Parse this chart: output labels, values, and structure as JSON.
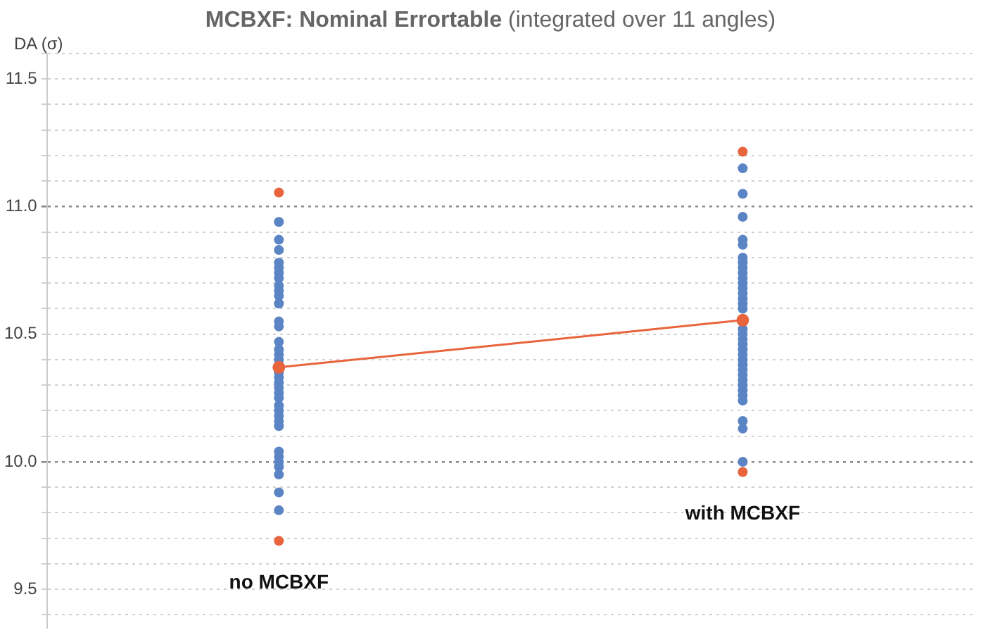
{
  "chart_data": {
    "type": "scatter",
    "title": "MCBXF: Nominal Errortable",
    "subtitle": "(integrated over 11 angles)",
    "ylabel": "DA (σ)",
    "categories": [
      "no MCBXF",
      "with MCBXF"
    ],
    "series": [
      {
        "color": "#5b84c4",
        "x": [
          "no MCBXF",
          "no MCBXF",
          "no MCBXF",
          "no MCBXF",
          "no MCBXF",
          "no MCBXF",
          "no MCBXF",
          "no MCBXF",
          "no MCBXF",
          "no MCBXF",
          "no MCBXF",
          "no MCBXF",
          "no MCBXF",
          "no MCBXF",
          "no MCBXF",
          "no MCBXF",
          "no MCBXF",
          "no MCBXF",
          "no MCBXF",
          "no MCBXF",
          "no MCBXF",
          "no MCBXF",
          "no MCBXF",
          "no MCBXF",
          "no MCBXF",
          "no MCBXF",
          "no MCBXF",
          "no MCBXF",
          "no MCBXF",
          "no MCBXF",
          "no MCBXF",
          "no MCBXF",
          "no MCBXF",
          "no MCBXF",
          "no MCBXF",
          "with MCBXF",
          "with MCBXF",
          "with MCBXF",
          "with MCBXF",
          "with MCBXF",
          "with MCBXF",
          "with MCBXF",
          "with MCBXF",
          "with MCBXF",
          "with MCBXF",
          "with MCBXF",
          "with MCBXF",
          "with MCBXF",
          "with MCBXF",
          "with MCBXF",
          "with MCBXF",
          "with MCBXF",
          "with MCBXF",
          "with MCBXF",
          "with MCBXF",
          "with MCBXF",
          "with MCBXF",
          "with MCBXF",
          "with MCBXF",
          "with MCBXF",
          "with MCBXF",
          "with MCBXF",
          "with MCBXF",
          "with MCBXF",
          "with MCBXF",
          "with MCBXF",
          "with MCBXF",
          "with MCBXF",
          "with MCBXF"
        ],
        "values": [
          10.94,
          10.87,
          10.83,
          10.78,
          10.76,
          10.74,
          10.72,
          10.69,
          10.67,
          10.65,
          10.62,
          10.55,
          10.53,
          10.47,
          10.44,
          10.42,
          10.4,
          10.35,
          10.33,
          10.31,
          10.29,
          10.27,
          10.25,
          10.22,
          10.2,
          10.18,
          10.16,
          10.14,
          10.04,
          10.02,
          10.0,
          9.98,
          9.95,
          9.88,
          9.81,
          11.15,
          11.05,
          10.96,
          10.87,
          10.85,
          10.8,
          10.78,
          10.76,
          10.74,
          10.72,
          10.7,
          10.68,
          10.66,
          10.64,
          10.62,
          10.6,
          10.52,
          10.5,
          10.48,
          10.46,
          10.44,
          10.42,
          10.4,
          10.38,
          10.36,
          10.34,
          10.32,
          10.3,
          10.28,
          10.26,
          10.24,
          10.16,
          10.13,
          10.0
        ]
      },
      {
        "color": "#e8643c",
        "x": [
          "no MCBXF",
          "no MCBXF",
          "with MCBXF",
          "with MCBXF"
        ],
        "values": [
          11.055,
          9.69,
          11.215,
          9.96
        ]
      },
      {
        "type": "line",
        "color": "#e8643c",
        "values": [
          10.37,
          10.555
        ]
      }
    ],
    "ylim": [
      9.35,
      11.6
    ],
    "yticks": [
      {
        "value": 9.4,
        "label": null
      },
      9.5,
      {
        "value": 9.6,
        "label": null
      },
      {
        "value": 9.7,
        "label": null
      },
      {
        "value": 9.8,
        "label": null
      },
      {
        "value": 9.9,
        "label": null
      },
      {
        "value": 10,
        "label": "10.0"
      },
      {
        "value": 10.1,
        "label": null
      },
      {
        "value": 10.2,
        "label": null
      },
      {
        "value": 10.3,
        "label": null
      },
      {
        "value": 10.4,
        "label": null
      },
      10.5,
      {
        "value": 10.6,
        "label": null
      },
      {
        "value": 10.7,
        "label": null
      },
      {
        "value": 10.8,
        "label": null
      },
      {
        "value": 10.9,
        "label": null
      },
      {
        "value": 11,
        "label": "11.0"
      },
      {
        "value": 11.1,
        "label": null
      },
      {
        "value": 11.2,
        "label": null
      },
      {
        "value": 11.3,
        "label": null
      },
      {
        "value": 11.4,
        "label": null
      },
      11.5,
      {
        "value": 11.6,
        "label": null
      }
    ],
    "grid": "y",
    "legend": false,
    "marker": "circle",
    "tick_labels": "y"
  }
}
